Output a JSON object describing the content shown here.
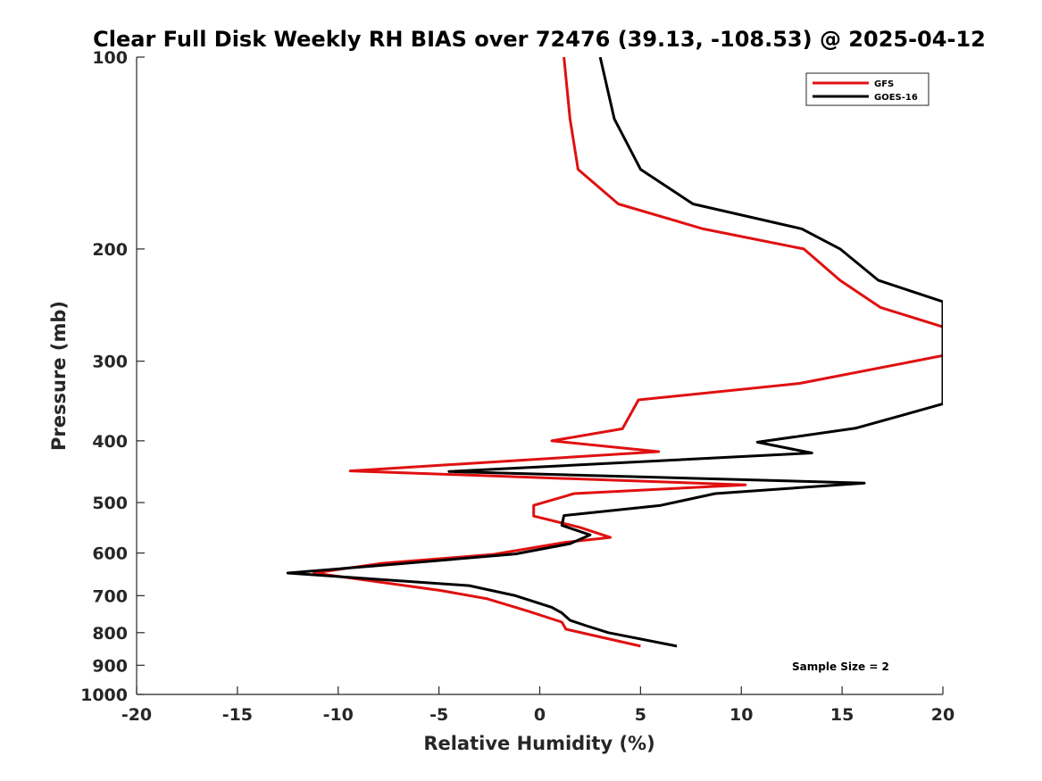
{
  "chart_data": {
    "type": "line",
    "title": "Clear Full Disk Weekly RH BIAS over 72476 (39.13, -108.53) @ 2025-04-12",
    "xlabel": "Relative Humidity (%)",
    "ylabel": "Pressure (mb)",
    "xlim": [
      -20,
      20
    ],
    "ylim": [
      100,
      1000
    ],
    "y_scale": "log",
    "y_reversed": true,
    "x_ticks": [
      -20,
      -15,
      -10,
      -5,
      0,
      5,
      10,
      15,
      20
    ],
    "x_tick_labels": [
      "-20",
      "-15",
      "-10",
      "-5",
      "0",
      "5",
      "10",
      "15",
      "20"
    ],
    "y_ticks": [
      100,
      200,
      300,
      400,
      500,
      600,
      700,
      800,
      900,
      1000
    ],
    "y_tick_labels": [
      "100",
      "200",
      "300",
      "400",
      "500",
      "600",
      "700",
      "800",
      "900",
      "1000"
    ],
    "grid": false,
    "legend_position": "top-right",
    "annotation": "Sample Size = 2",
    "series": [
      {
        "name": "GFS",
        "color": "#e01010",
        "points": [
          {
            "x": 1.2,
            "p": 100
          },
          {
            "x": 1.5,
            "p": 125
          },
          {
            "x": 1.9,
            "p": 150
          },
          {
            "x": 3.9,
            "p": 170
          },
          {
            "x": 8.1,
            "p": 186
          },
          {
            "x": 13.1,
            "p": 200
          },
          {
            "x": 14.9,
            "p": 224
          },
          {
            "x": 16.9,
            "p": 247
          },
          {
            "x": 20.0,
            "p": 265
          },
          {
            "x": 20.0,
            "p": 265
          },
          {
            "x": 20.0,
            "p": 294
          },
          {
            "x": 12.9,
            "p": 325
          },
          {
            "x": 4.9,
            "p": 345
          },
          {
            "x": 4.1,
            "p": 383
          },
          {
            "x": 0.6,
            "p": 400
          },
          {
            "x": 5.9,
            "p": 416
          },
          {
            "x": -9.4,
            "p": 446
          },
          {
            "x": 10.2,
            "p": 469
          },
          {
            "x": 1.7,
            "p": 484
          },
          {
            "x": -0.3,
            "p": 505
          },
          {
            "x": -0.3,
            "p": 525
          },
          {
            "x": 2.0,
            "p": 547
          },
          {
            "x": 3.5,
            "p": 567
          },
          {
            "x": 1.3,
            "p": 577
          },
          {
            "x": -2.3,
            "p": 603
          },
          {
            "x": -7.9,
            "p": 623
          },
          {
            "x": -11.2,
            "p": 645
          },
          {
            "x": -4.9,
            "p": 687
          },
          {
            "x": -2.6,
            "p": 708
          },
          {
            "x": -0.6,
            "p": 740
          },
          {
            "x": 1.1,
            "p": 770
          },
          {
            "x": 1.3,
            "p": 790
          },
          {
            "x": 5.0,
            "p": 840
          }
        ]
      },
      {
        "name": "GOES-16",
        "color": "#000000",
        "points": [
          {
            "x": 3.0,
            "p": 100
          },
          {
            "x": 3.7,
            "p": 125
          },
          {
            "x": 5.0,
            "p": 150
          },
          {
            "x": 7.6,
            "p": 170
          },
          {
            "x": 13.0,
            "p": 186
          },
          {
            "x": 14.9,
            "p": 200
          },
          {
            "x": 16.8,
            "p": 224
          },
          {
            "x": 20.0,
            "p": 242
          },
          {
            "x": 20.0,
            "p": 350
          },
          {
            "x": 15.7,
            "p": 382
          },
          {
            "x": 10.8,
            "p": 402
          },
          {
            "x": 13.5,
            "p": 418
          },
          {
            "x": -4.5,
            "p": 447
          },
          {
            "x": 16.1,
            "p": 466
          },
          {
            "x": 8.7,
            "p": 484
          },
          {
            "x": 6.0,
            "p": 505
          },
          {
            "x": 1.2,
            "p": 524
          },
          {
            "x": 1.1,
            "p": 543
          },
          {
            "x": 2.5,
            "p": 562
          },
          {
            "x": 1.5,
            "p": 580
          },
          {
            "x": -1.2,
            "p": 602
          },
          {
            "x": -7.0,
            "p": 624
          },
          {
            "x": -12.5,
            "p": 645
          },
          {
            "x": -3.5,
            "p": 675
          },
          {
            "x": -1.2,
            "p": 700
          },
          {
            "x": 0.6,
            "p": 730
          },
          {
            "x": 1.1,
            "p": 745
          },
          {
            "x": 1.5,
            "p": 765
          },
          {
            "x": 2.3,
            "p": 780
          },
          {
            "x": 3.4,
            "p": 800
          },
          {
            "x": 6.8,
            "p": 840
          }
        ]
      }
    ]
  }
}
